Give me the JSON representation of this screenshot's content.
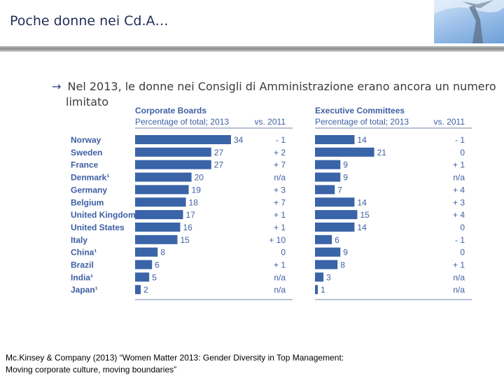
{
  "slide": {
    "title": "Poche donne nei Cd.A…",
    "bullet_line1": "Nel 2013, le donne nei Consigli di Amministrazione erano ancora un numero",
    "bullet_line2": "limitato",
    "footer_line1": "Mc.Kinsey & Company (2013) “Women Matter 2013: Gender Diversity in Top Management:",
    "footer_line2": "Moving corporate culture, moving boundaries”"
  },
  "colors": {
    "bar": "#3a64a8",
    "header": "#3d5fa3",
    "text": "#3c3c3c",
    "accent": "#1f2d57"
  },
  "chart_data": [
    {
      "type": "bar",
      "orientation": "horizontal",
      "title": "Corporate Boards",
      "subtitle": "Percentage of total; 2013",
      "delta_header": "vs. 2011",
      "categories": [
        "Norway",
        "Sweden",
        "France",
        "Denmark¹",
        "Germany",
        "Belgium",
        "United Kingdom",
        "United States",
        "Italy",
        "China¹",
        "Brazil",
        "India¹",
        "Japan¹"
      ],
      "values": [
        34,
        27,
        27,
        20,
        19,
        18,
        17,
        16,
        15,
        8,
        6,
        5,
        2
      ],
      "deltas": [
        "- 1",
        "+ 2",
        "+ 7",
        "n/a",
        "+ 3",
        "+ 7",
        "+ 1",
        "+ 1",
        "+ 10",
        "0",
        "+ 1",
        "n/a",
        "n/a"
      ],
      "xlim": [
        0,
        34
      ]
    },
    {
      "type": "bar",
      "orientation": "horizontal",
      "title": "Executive Committees",
      "subtitle": "Percentage of total; 2013",
      "delta_header": "vs. 2011",
      "categories": [
        "Norway",
        "Sweden",
        "France",
        "Denmark¹",
        "Germany",
        "Belgium",
        "United Kingdom",
        "United States",
        "Italy",
        "China¹",
        "Brazil",
        "India¹",
        "Japan¹"
      ],
      "values": [
        14,
        21,
        9,
        9,
        7,
        14,
        15,
        14,
        6,
        9,
        8,
        3,
        1
      ],
      "deltas": [
        "- 1",
        "0",
        "+ 1",
        "n/a",
        "+ 4",
        "+ 3",
        "+ 4",
        "0",
        "- 1",
        "0",
        "+ 1",
        "n/a",
        "n/a"
      ],
      "xlim": [
        0,
        34
      ]
    }
  ]
}
